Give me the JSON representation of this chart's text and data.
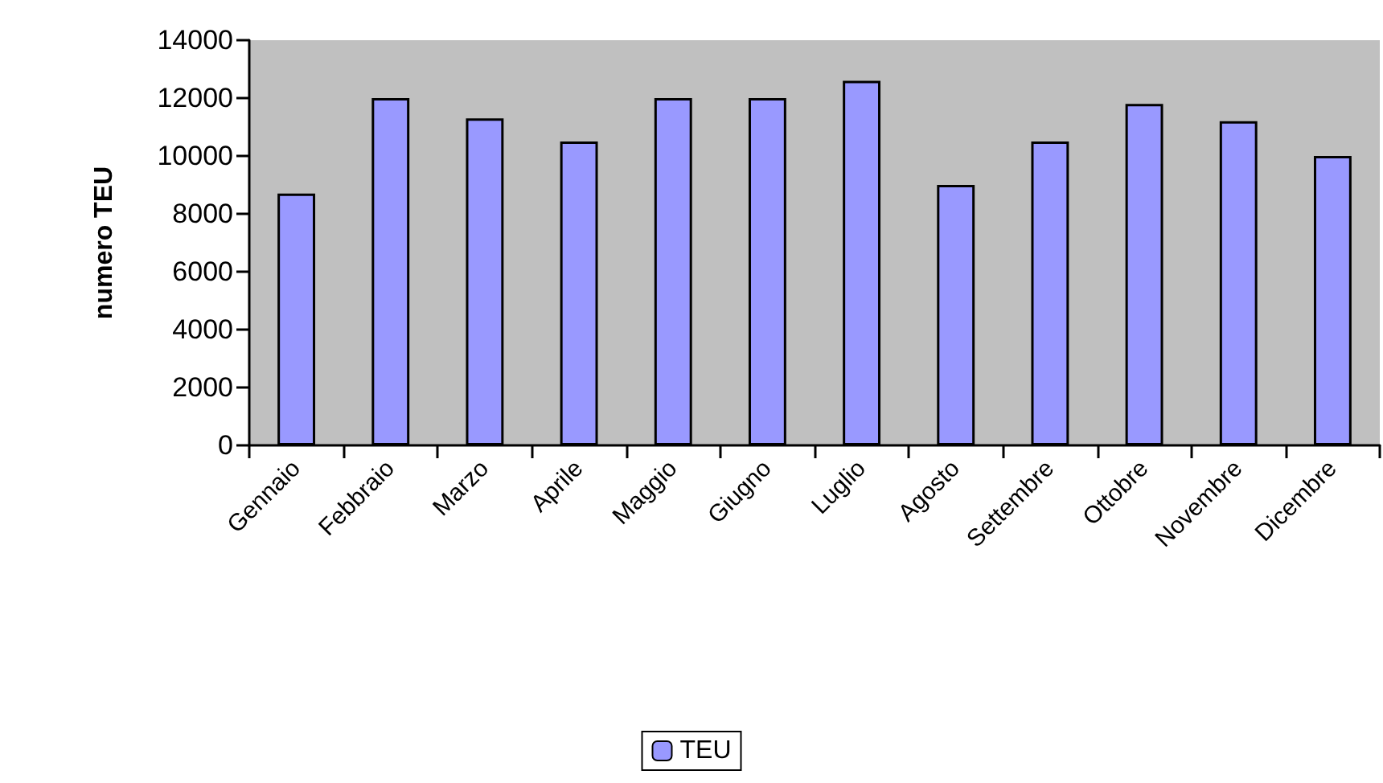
{
  "chart_data": {
    "type": "bar",
    "ylabel": "numero TEU",
    "categories": [
      "Gennaio",
      "Febbraio",
      "Marzo",
      "Aprile",
      "Maggio",
      "Giugno",
      "Luglio",
      "Agosto",
      "Settembre",
      "Ottobre",
      "Novembre",
      "Dicembre"
    ],
    "series": [
      {
        "name": "TEU",
        "color": "#9999ff",
        "values": [
          8700,
          12000,
          11300,
          10500,
          12000,
          12000,
          12600,
          9000,
          10500,
          11800,
          11200,
          10000
        ]
      }
    ],
    "ylim": [
      0,
      14000
    ],
    "yticks": [
      0,
      2000,
      4000,
      6000,
      8000,
      10000,
      12000,
      14000
    ],
    "grid": false,
    "legend": "bottom"
  }
}
